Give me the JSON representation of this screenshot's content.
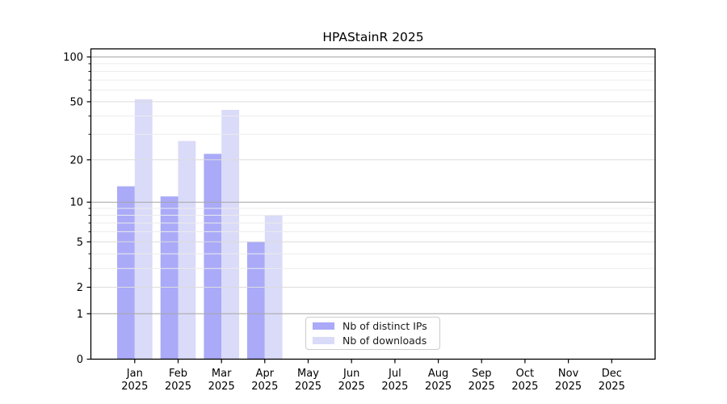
{
  "chart_data": {
    "type": "bar",
    "title": "HPAStainR 2025",
    "categories": [
      "Jan 2025",
      "Feb 2025",
      "Mar 2025",
      "Apr 2025",
      "May 2025",
      "Jun 2025",
      "Jul 2025",
      "Aug 2025",
      "Sep 2025",
      "Oct 2025",
      "Nov 2025",
      "Dec 2025"
    ],
    "series": [
      {
        "name": "Nb of distinct IPs",
        "color": "#aaaaf8",
        "values": [
          13,
          11,
          22,
          5,
          0,
          0,
          0,
          0,
          0,
          0,
          0,
          0
        ]
      },
      {
        "name": "Nb of downloads",
        "color": "#dadaf9",
        "values": [
          52,
          27,
          44,
          8,
          0,
          0,
          0,
          0,
          0,
          0,
          0,
          0
        ]
      }
    ],
    "yscale": "log1p",
    "ytick_labels": [
      "0",
      "1",
      "2",
      "5",
      "10",
      "20",
      "50",
      "100"
    ],
    "ytick_values": [
      0,
      1,
      2,
      5,
      10,
      20,
      50,
      100
    ],
    "ylim": [
      0,
      112
    ],
    "xlabel": "",
    "ylabel": "",
    "grid": "horizontal major and minor, drawn over bars",
    "legend_position": "inside bottom center-right"
  }
}
